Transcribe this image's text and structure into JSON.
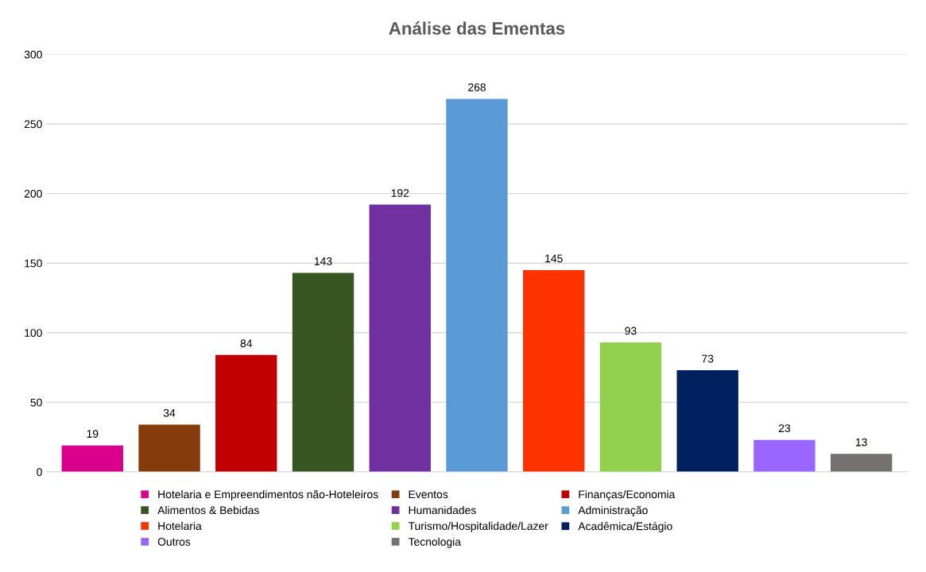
{
  "chart_data": {
    "type": "bar",
    "title": "Análise das Ementas",
    "categories": [
      null,
      null,
      null,
      null,
      null,
      null,
      null,
      null,
      null,
      null,
      null
    ],
    "series": [
      {
        "name": "Hotelaria e Empreendimentos não-Hoteleiros",
        "color": "#d9008c",
        "values": [
          19,
          null,
          null,
          null,
          null,
          null,
          null,
          null,
          null,
          null,
          null
        ]
      },
      {
        "name": "Eventos",
        "color": "#843c0c",
        "values": [
          null,
          34,
          null,
          null,
          null,
          null,
          null,
          null,
          null,
          null,
          null
        ]
      },
      {
        "name": "Finanças/Economia",
        "color": "#c00000",
        "values": [
          null,
          null,
          84,
          null,
          null,
          null,
          null,
          null,
          null,
          null,
          null
        ]
      },
      {
        "name": "Alimentos & Bebidas",
        "color": "#375623",
        "values": [
          null,
          null,
          null,
          143,
          null,
          null,
          null,
          null,
          null,
          null,
          null
        ]
      },
      {
        "name": "Humanidades",
        "color": "#7030a0",
        "values": [
          null,
          null,
          null,
          null,
          192,
          null,
          null,
          null,
          null,
          null,
          null
        ]
      },
      {
        "name": "Administração",
        "color": "#5b9bd5",
        "values": [
          null,
          null,
          null,
          null,
          null,
          268,
          null,
          null,
          null,
          null,
          null
        ]
      },
      {
        "name": "Hotelaria",
        "color": "#ff3300",
        "values": [
          null,
          null,
          null,
          null,
          null,
          null,
          145,
          null,
          null,
          null,
          null
        ]
      },
      {
        "name": "Turismo/Hospitalidade/Lazer",
        "color": "#92d050",
        "values": [
          null,
          null,
          null,
          null,
          null,
          null,
          null,
          93,
          null,
          null,
          null
        ]
      },
      {
        "name": "Acadêmica/Estágio",
        "color": "#002060",
        "values": [
          null,
          null,
          null,
          null,
          null,
          null,
          null,
          null,
          73,
          null,
          null
        ]
      },
      {
        "name": "Outros",
        "color": "#9966ff",
        "values": [
          null,
          null,
          null,
          null,
          null,
          null,
          null,
          null,
          null,
          23,
          null
        ]
      },
      {
        "name": "Tecnologia",
        "color": "#767171",
        "values": [
          null,
          null,
          null,
          null,
          null,
          null,
          null,
          null,
          null,
          null,
          13
        ]
      }
    ],
    "ylim": [
      0,
      300
    ],
    "yticks": [
      0,
      50,
      100,
      150,
      200,
      250,
      300
    ],
    "grid": "y",
    "legend": "bottom",
    "data_labels": true
  }
}
